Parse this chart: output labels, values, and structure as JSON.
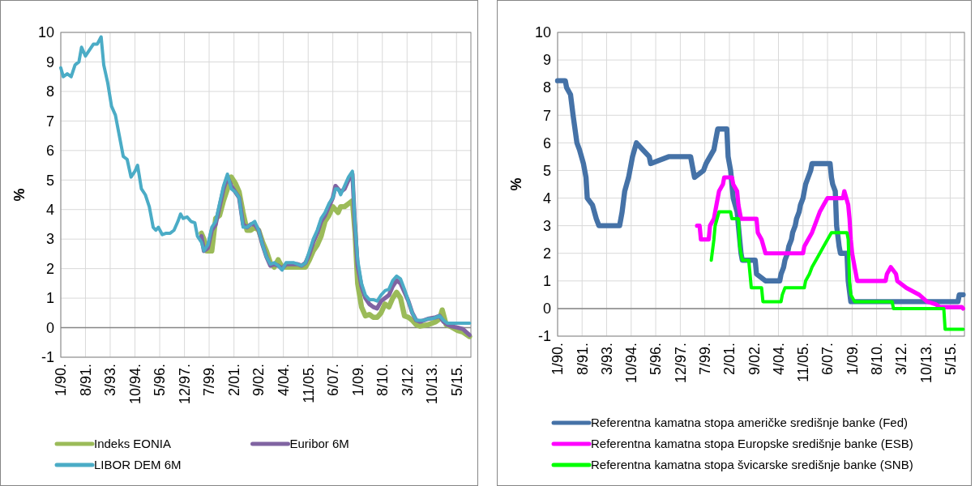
{
  "chart_data": [
    {
      "type": "line",
      "ylabel": "%",
      "xlim": [
        "1990-01",
        "2016-04"
      ],
      "ylim": [
        -1,
        10
      ],
      "yticks": [
        -1,
        0,
        1,
        2,
        3,
        4,
        5,
        6,
        7,
        8,
        9,
        10
      ],
      "xticks": [
        {
          "value": "1990-01",
          "label": "1/90."
        },
        {
          "value": "1991-08",
          "label": "8/91."
        },
        {
          "value": "1993-03",
          "label": "3/93."
        },
        {
          "value": "1994-10",
          "label": "10/94."
        },
        {
          "value": "1996-05",
          "label": "5/96."
        },
        {
          "value": "1997-12",
          "label": "12/97."
        },
        {
          "value": "1999-07",
          "label": "7/99."
        },
        {
          "value": "2001-02",
          "label": "2/01."
        },
        {
          "value": "2002-09",
          "label": "9/02."
        },
        {
          "value": "2004-04",
          "label": "4/04."
        },
        {
          "value": "2005-11",
          "label": "11/05."
        },
        {
          "value": "2007-06",
          "label": "6/07."
        },
        {
          "value": "2009-01",
          "label": "1/09."
        },
        {
          "value": "2010-08",
          "label": "8/10."
        },
        {
          "value": "2012-03",
          "label": "3/12."
        },
        {
          "value": "2013-10",
          "label": "10/13."
        },
        {
          "value": "2015-05",
          "label": "5/15."
        }
      ],
      "grid": true,
      "legend": "bottom",
      "line_style": "solid",
      "series": [
        {
          "name": "Indeks EONIA",
          "color": "#9bbb59",
          "x": [
            "1999-01",
            "1999-03",
            "1999-05",
            "1999-09",
            "1999-12",
            "2000-03",
            "2000-06",
            "2000-09",
            "2000-12",
            "2001-03",
            "2001-06",
            "2001-09",
            "2001-12",
            "2002-03",
            "2002-06",
            "2002-09",
            "2002-12",
            "2003-03",
            "2003-06",
            "2003-09",
            "2003-12",
            "2004-03",
            "2004-09",
            "2005-06",
            "2005-09",
            "2005-12",
            "2006-03",
            "2006-06",
            "2006-09",
            "2006-12",
            "2007-03",
            "2007-06",
            "2007-08",
            "2007-10",
            "2007-12",
            "2008-03",
            "2008-06",
            "2008-09",
            "2008-11",
            "2009-01",
            "2009-04",
            "2009-07",
            "2009-10",
            "2010-01",
            "2010-04",
            "2010-07",
            "2010-10",
            "2011-01",
            "2011-04",
            "2011-07",
            "2011-10",
            "2012-01",
            "2012-04",
            "2012-07",
            "2012-10",
            "2013-01",
            "2013-07",
            "2014-01",
            "2014-04",
            "2014-06",
            "2014-09",
            "2014-12",
            "2015-06",
            "2015-10",
            "2016-03"
          ],
          "values": [
            3.2,
            3.0,
            2.6,
            2.6,
            3.7,
            3.8,
            4.3,
            4.7,
            5.1,
            4.9,
            4.6,
            3.9,
            3.3,
            3.3,
            3.4,
            3.3,
            2.9,
            2.6,
            2.2,
            2.05,
            2.3,
            2.05,
            2.05,
            2.05,
            2.05,
            2.3,
            2.6,
            2.8,
            3.1,
            3.6,
            3.8,
            4.1,
            4.0,
            3.9,
            4.1,
            4.1,
            4.2,
            4.3,
            3.2,
            1.5,
            0.7,
            0.4,
            0.45,
            0.35,
            0.35,
            0.5,
            0.8,
            0.7,
            1.0,
            1.2,
            1.0,
            0.4,
            0.35,
            0.25,
            0.1,
            0.05,
            0.1,
            0.2,
            0.3,
            0.6,
            0.1,
            0.05,
            -0.1,
            -0.15,
            -0.3
          ]
        },
        {
          "name": "Euribor 6M",
          "color": "#8064a2",
          "x": [
            "1999-01",
            "1999-03",
            "1999-06",
            "1999-09",
            "1999-12",
            "2000-03",
            "2000-06",
            "2000-09",
            "2000-12",
            "2001-03",
            "2001-06",
            "2001-09",
            "2001-12",
            "2002-03",
            "2002-06",
            "2002-09",
            "2002-12",
            "2003-03",
            "2003-06",
            "2003-09",
            "2003-12",
            "2004-03",
            "2004-06",
            "2004-09",
            "2004-12",
            "2005-03",
            "2005-06",
            "2005-09",
            "2005-12",
            "2006-03",
            "2006-06",
            "2006-09",
            "2006-12",
            "2007-03",
            "2007-06",
            "2007-08",
            "2007-10",
            "2007-12",
            "2008-03",
            "2008-06",
            "2008-09",
            "2008-11",
            "2009-01",
            "2009-04",
            "2009-07",
            "2009-10",
            "2010-01",
            "2010-04",
            "2010-07",
            "2010-10",
            "2011-01",
            "2011-04",
            "2011-07",
            "2011-10",
            "2012-01",
            "2012-04",
            "2012-07",
            "2012-10",
            "2013-01",
            "2013-07",
            "2014-01",
            "2014-04",
            "2014-07",
            "2014-10",
            "2015-01",
            "2015-06",
            "2015-10",
            "2016-03"
          ],
          "values": [
            3.1,
            2.6,
            2.7,
            3.3,
            3.5,
            4.1,
            4.7,
            5.1,
            4.8,
            4.6,
            4.4,
            3.5,
            3.4,
            3.5,
            3.5,
            3.3,
            2.8,
            2.4,
            2.1,
            2.15,
            2.1,
            2.0,
            2.15,
            2.15,
            2.15,
            2.15,
            2.1,
            2.2,
            2.5,
            2.9,
            3.2,
            3.6,
            3.8,
            4.1,
            4.4,
            4.8,
            4.7,
            4.6,
            4.7,
            5.0,
            5.2,
            3.4,
            2.1,
            1.4,
            1.0,
            0.8,
            0.7,
            0.65,
            0.9,
            1.0,
            1.1,
            1.4,
            1.6,
            1.5,
            1.2,
            0.9,
            0.5,
            0.25,
            0.2,
            0.3,
            0.35,
            0.4,
            0.2,
            0.1,
            0.05,
            0.0,
            -0.05,
            -0.25
          ]
        },
        {
          "name": "LIBOR DEM 6M",
          "color": "#4bacc6",
          "x": [
            "1990-01",
            "1990-03",
            "1990-06",
            "1990-09",
            "1990-12",
            "1991-03",
            "1991-05",
            "1991-08",
            "1991-11",
            "1992-02",
            "1992-05",
            "1992-08",
            "1992-10",
            "1993-01",
            "1993-04",
            "1993-07",
            "1993-10",
            "1994-01",
            "1994-04",
            "1994-07",
            "1994-10",
            "1994-12",
            "1995-03",
            "1995-06",
            "1995-09",
            "1995-12",
            "1996-02",
            "1996-04",
            "1996-07",
            "1996-10",
            "1997-01",
            "1997-04",
            "1997-07",
            "1997-09",
            "1997-11",
            "1998-02",
            "1998-05",
            "1998-08",
            "1998-10",
            "1999-01",
            "1999-03",
            "1999-06",
            "1999-09",
            "1999-12",
            "2000-03",
            "2000-06",
            "2000-09",
            "2000-12",
            "2001-03",
            "2001-06",
            "2001-09",
            "2001-12",
            "2002-03",
            "2002-06",
            "2002-09",
            "2002-12",
            "2003-03",
            "2003-06",
            "2003-09",
            "2003-12",
            "2004-03",
            "2004-06",
            "2004-09",
            "2004-12",
            "2005-03",
            "2005-06",
            "2005-09",
            "2005-12",
            "2006-03",
            "2006-06",
            "2006-09",
            "2006-12",
            "2007-03",
            "2007-06",
            "2007-08",
            "2007-10",
            "2007-12",
            "2008-03",
            "2008-06",
            "2008-09",
            "2008-11",
            "2009-01",
            "2009-04",
            "2009-07",
            "2009-10",
            "2010-01",
            "2010-04",
            "2010-07",
            "2010-10",
            "2011-01",
            "2011-04",
            "2011-07",
            "2011-10",
            "2012-01",
            "2012-04",
            "2012-07",
            "2012-10",
            "2013-01",
            "2013-04",
            "2013-07",
            "2013-10",
            "2014-01",
            "2014-04",
            "2014-07",
            "2014-10",
            "2015-01",
            "2015-06",
            "2016-03"
          ],
          "values": [
            8.8,
            8.5,
            8.6,
            8.5,
            8.9,
            9.0,
            9.5,
            9.2,
            9.4,
            9.6,
            9.6,
            9.85,
            8.9,
            8.3,
            7.5,
            7.2,
            6.5,
            5.8,
            5.7,
            5.1,
            5.3,
            5.5,
            4.7,
            4.5,
            4.1,
            3.4,
            3.3,
            3.4,
            3.15,
            3.2,
            3.2,
            3.3,
            3.6,
            3.85,
            3.7,
            3.75,
            3.6,
            3.55,
            3.1,
            2.9,
            2.6,
            2.8,
            3.4,
            3.6,
            4.2,
            4.8,
            5.2,
            4.7,
            4.6,
            4.4,
            3.4,
            3.4,
            3.5,
            3.6,
            3.3,
            2.8,
            2.4,
            2.15,
            2.2,
            2.1,
            1.95,
            2.2,
            2.2,
            2.2,
            2.15,
            2.1,
            2.2,
            2.6,
            3.0,
            3.3,
            3.7,
            3.9,
            4.2,
            4.4,
            4.7,
            4.7,
            4.5,
            4.8,
            5.1,
            5.3,
            3.5,
            2.3,
            1.5,
            1.1,
            0.95,
            0.95,
            0.9,
            1.1,
            1.25,
            1.3,
            1.6,
            1.75,
            1.65,
            1.3,
            0.9,
            0.5,
            0.25,
            0.25,
            0.25,
            0.3,
            0.3,
            0.35,
            0.4,
            0.25,
            0.15,
            0.15,
            0.15,
            0.15
          ]
        }
      ]
    },
    {
      "type": "line",
      "ylabel": "%",
      "xlim": [
        "1990-01",
        "2016-04"
      ],
      "ylim": [
        -1,
        10
      ],
      "yticks": [
        -1,
        0,
        1,
        2,
        3,
        4,
        5,
        6,
        7,
        8,
        9,
        10
      ],
      "xticks": [
        {
          "value": "1990-01",
          "label": "1/90."
        },
        {
          "value": "1991-08",
          "label": "8/91."
        },
        {
          "value": "1993-03",
          "label": "3/93."
        },
        {
          "value": "1994-10",
          "label": "10/94."
        },
        {
          "value": "1996-05",
          "label": "5/96."
        },
        {
          "value": "1997-12",
          "label": "12/97."
        },
        {
          "value": "1999-07",
          "label": "7/99."
        },
        {
          "value": "2001-02",
          "label": "2/01."
        },
        {
          "value": "2002-09",
          "label": "9/02."
        },
        {
          "value": "2004-04",
          "label": "4/04."
        },
        {
          "value": "2005-11",
          "label": "11/05."
        },
        {
          "value": "2007-06",
          "label": "6/07."
        },
        {
          "value": "2009-01",
          "label": "1/09."
        },
        {
          "value": "2010-08",
          "label": "8/10."
        },
        {
          "value": "2012-03",
          "label": "3/12."
        },
        {
          "value": "2013-10",
          "label": "10/13."
        },
        {
          "value": "2015-05",
          "label": "5/15."
        }
      ],
      "grid": true,
      "legend": "bottom",
      "line_style": "solid",
      "series": [
        {
          "name": "Referentna kamatna stopa američke središnje banke (Fed)",
          "color": "#4572a7",
          "x": [
            "1990-01",
            "1990-07",
            "1990-08",
            "1990-11",
            "1991-01",
            "1991-04",
            "1991-06",
            "1991-09",
            "1991-11",
            "1991-12",
            "1992-04",
            "1992-07",
            "1992-09",
            "1994-01",
            "1994-03",
            "1994-05",
            "1994-08",
            "1994-11",
            "1995-02",
            "1995-07",
            "1995-12",
            "1996-01",
            "1997-03",
            "1998-08",
            "1998-10",
            "1998-11",
            "1999-06",
            "1999-08",
            "1999-11",
            "2000-02",
            "2000-03",
            "2000-05",
            "2000-12",
            "2001-01",
            "2001-03",
            "2001-04",
            "2001-05",
            "2001-08",
            "2001-10",
            "2001-11",
            "2001-12",
            "2002-10",
            "2002-11",
            "2003-06",
            "2004-05",
            "2004-06",
            "2004-08",
            "2004-09",
            "2004-11",
            "2004-12",
            "2005-02",
            "2005-03",
            "2005-05",
            "2005-06",
            "2005-08",
            "2005-09",
            "2005-11",
            "2005-12",
            "2006-01",
            "2006-03",
            "2006-05",
            "2006-06",
            "2007-08",
            "2007-09",
            "2007-10",
            "2007-12",
            "2008-01",
            "2008-03",
            "2008-04",
            "2008-09",
            "2008-10",
            "2008-12",
            "2015-11",
            "2015-12",
            "2016-03"
          ],
          "values": [
            8.25,
            8.25,
            8.0,
            7.75,
            7.0,
            6.0,
            5.75,
            5.25,
            4.75,
            4.0,
            3.75,
            3.25,
            3.0,
            3.0,
            3.5,
            4.25,
            4.75,
            5.5,
            6.0,
            5.75,
            5.5,
            5.25,
            5.5,
            5.5,
            5.0,
            4.75,
            5.0,
            5.25,
            5.5,
            5.75,
            6.0,
            6.5,
            6.5,
            5.5,
            5.0,
            4.5,
            4.0,
            3.5,
            2.5,
            2.0,
            1.75,
            1.75,
            1.25,
            1.0,
            1.0,
            1.25,
            1.5,
            1.75,
            2.0,
            2.25,
            2.5,
            2.75,
            3.0,
            3.25,
            3.5,
            3.75,
            4.0,
            4.25,
            4.5,
            4.75,
            5.0,
            5.25,
            5.25,
            4.75,
            4.5,
            4.25,
            3.0,
            2.25,
            2.0,
            2.0,
            1.0,
            0.25,
            0.25,
            0.5,
            0.5
          ]
        },
        {
          "name": "Referentna kamatna stopa Europske središnje banke (ESB)",
          "color": "#ff00ff",
          "x": [
            "1999-01",
            "1999-03",
            "1999-04",
            "1999-10",
            "1999-11",
            "2000-02",
            "2000-03",
            "2000-04",
            "2000-06",
            "2000-09",
            "2000-10",
            "2001-04",
            "2001-05",
            "2001-08",
            "2001-09",
            "2001-11",
            "2002-11",
            "2002-12",
            "2003-03",
            "2003-06",
            "2005-11",
            "2005-12",
            "2006-03",
            "2006-06",
            "2006-08",
            "2006-10",
            "2006-12",
            "2007-03",
            "2007-06",
            "2008-06",
            "2008-07",
            "2008-10",
            "2008-11",
            "2008-12",
            "2009-01",
            "2009-03",
            "2009-04",
            "2009-05",
            "2011-03",
            "2011-04",
            "2011-07",
            "2011-11",
            "2011-12",
            "2012-07",
            "2013-05",
            "2013-11",
            "2014-06",
            "2014-09",
            "2016-02",
            "2016-03"
          ],
          "values": [
            3.0,
            3.0,
            2.5,
            2.5,
            3.0,
            3.25,
            3.5,
            3.75,
            4.25,
            4.5,
            4.75,
            4.75,
            4.5,
            4.25,
            3.75,
            3.25,
            3.25,
            2.75,
            2.5,
            2.0,
            2.0,
            2.25,
            2.5,
            2.75,
            3.0,
            3.25,
            3.5,
            3.75,
            4.0,
            4.0,
            4.25,
            3.75,
            3.25,
            2.5,
            2.0,
            1.5,
            1.25,
            1.0,
            1.0,
            1.25,
            1.5,
            1.25,
            1.0,
            0.75,
            0.5,
            0.25,
            0.15,
            0.05,
            0.05,
            0.0
          ]
        },
        {
          "name": "Referentna kamatna stopa švicarske središnje banke (SNB)",
          "color": "#00ff00",
          "x": [
            "1999-12",
            "2000-02",
            "2000-03",
            "2000-06",
            "2001-03",
            "2001-04",
            "2001-09",
            "2001-10",
            "2001-12",
            "2002-05",
            "2002-06",
            "2002-07",
            "2003-03",
            "2003-04",
            "2004-06",
            "2004-07",
            "2004-09",
            "2005-12",
            "2006-01",
            "2006-04",
            "2006-06",
            "2006-09",
            "2006-12",
            "2007-03",
            "2007-06",
            "2007-09",
            "2008-09",
            "2008-10",
            "2008-11",
            "2008-12",
            "2009-03",
            "2011-08",
            "2011-09",
            "2014-12",
            "2015-01",
            "2016-03"
          ],
          "values": [
            1.75,
            2.5,
            3.0,
            3.5,
            3.5,
            3.25,
            3.25,
            2.25,
            1.75,
            1.75,
            1.25,
            0.75,
            0.75,
            0.25,
            0.25,
            0.5,
            0.75,
            0.75,
            1.0,
            1.25,
            1.5,
            1.75,
            2.0,
            2.25,
            2.5,
            2.75,
            2.75,
            2.5,
            1.0,
            0.5,
            0.25,
            0.25,
            0.0,
            0.0,
            -0.75,
            -0.75
          ]
        }
      ]
    }
  ]
}
